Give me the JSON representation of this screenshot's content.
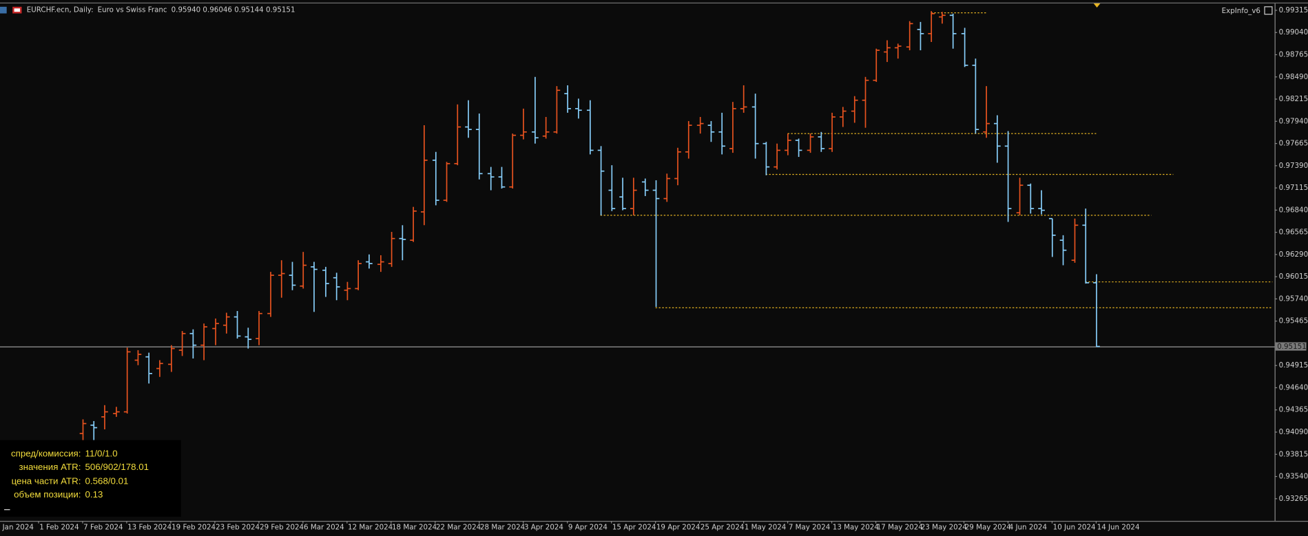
{
  "header": {
    "symbol": "EURCHF.ecn, Daily:",
    "description": "Euro vs Swiss Franc",
    "quote": "0.95940 0.96046 0.95144 0.95151",
    "indicator": "ExpInfo_v6"
  },
  "chart_data": {
    "type": "ohlc",
    "up_color": "#e8531f",
    "down_color": "#87cefa",
    "level_color": "#e6b422",
    "xlim": [
      -7.5,
      108.2
    ],
    "xticks": [
      {
        "value": -8,
        "label": "Jan 2024"
      },
      {
        "value": -4,
        "label": "1 Feb 2024"
      },
      {
        "value": 0,
        "label": "7 Feb 2024"
      },
      {
        "value": 4,
        "label": "13 Feb 2024"
      },
      {
        "value": 8,
        "label": "19 Feb 2024"
      },
      {
        "value": 12,
        "label": "23 Feb 2024"
      },
      {
        "value": 16,
        "label": "29 Feb 2024"
      },
      {
        "value": 20,
        "label": "6 Mar 2024"
      },
      {
        "value": 24,
        "label": "12 Mar 2024"
      },
      {
        "value": 28,
        "label": "18 Mar 2024"
      },
      {
        "value": 32,
        "label": "22 Mar 2024"
      },
      {
        "value": 36,
        "label": "28 Mar 2024"
      },
      {
        "value": 40,
        "label": "3 Apr 2024"
      },
      {
        "value": 44,
        "label": "9 Apr 2024"
      },
      {
        "value": 48,
        "label": "15 Apr 2024"
      },
      {
        "value": 52,
        "label": "19 Apr 2024"
      },
      {
        "value": 56,
        "label": "25 Apr 2024"
      },
      {
        "value": 60,
        "label": "1 May 2024"
      },
      {
        "value": 64,
        "label": "7 May 2024"
      },
      {
        "value": 68,
        "label": "13 May 2024"
      },
      {
        "value": 72,
        "label": "17 May 2024"
      },
      {
        "value": 76,
        "label": "23 May 2024"
      },
      {
        "value": 80,
        "label": "29 May 2024"
      },
      {
        "value": 84,
        "label": "4 Jun 2024"
      },
      {
        "value": 88,
        "label": "10 Jun 2024"
      },
      {
        "value": 92,
        "label": "14 Jun 2024"
      }
    ],
    "ylim": [
      0.9299,
      0.9939
    ],
    "yticks": [
      0.99315,
      {
        "value": 0.9904,
        "label": "0.99040"
      },
      0.98765,
      {
        "value": 0.9849,
        "label": "0.98490"
      },
      0.98215,
      {
        "value": 0.9794,
        "label": "0.97940"
      },
      0.97665,
      {
        "value": 0.9739,
        "label": "0.97390"
      },
      0.97115,
      {
        "value": 0.9684,
        "label": "0.96840"
      },
      0.96565,
      {
        "value": 0.9629,
        "label": "0.96290"
      },
      0.96015,
      {
        "value": 0.9574,
        "label": "0.95740"
      },
      0.95465,
      0.94915,
      {
        "value": 0.9464,
        "label": "0.94640"
      },
      0.94365,
      {
        "value": 0.9409,
        "label": "0.94090"
      },
      0.93815,
      {
        "value": 0.9354,
        "label": "0.93540"
      },
      0.93265
    ],
    "open": [
      0.94073,
      0.94176,
      0.94279,
      0.9432,
      0.94341,
      0.94981,
      0.95022,
      0.94878,
      0.9493,
      0.95105,
      0.95311,
      0.95167,
      0.95373,
      0.95414,
      0.95517,
      0.9527,
      0.95249,
      0.95559,
      0.96033,
      0.96033,
      0.95899,
      0.96137,
      0.96095,
      0.96002,
      0.95848,
      0.95868,
      0.96199,
      0.96168,
      0.96178,
      0.96488,
      0.96467,
      0.96818,
      0.97458,
      0.96962,
      0.97416,
      0.9787,
      0.97839,
      0.97292,
      0.97251,
      0.97127,
      0.97767,
      0.97808,
      0.97757,
      0.97808,
      0.98283,
      0.98097,
      0.98077,
      0.97581,
      0.97086,
      0.97003,
      0.96859,
      0.97189,
      0.97086,
      0.96983,
      0.97231,
      0.97561,
      0.97891,
      0.97891,
      0.97808,
      0.97602,
      0.98097,
      0.98118,
      0.97664,
      0.97375,
      0.97581,
      0.97705,
      0.97581,
      0.97747,
      0.97602,
      0.97994,
      0.98066,
      0.98201,
      0.98448,
      0.98799,
      0.98851,
      0.98861,
      0.99078,
      0.99026,
      0.99233,
      0.99253,
      0.99026,
      0.98634,
      0.97808,
      0.97912,
      0.97633,
      0.96807,
      0.97148,
      0.96859,
      0.96735,
      0.96467,
      0.96219,
      0.96653,
      0.9594
    ],
    "high": [
      0.94248,
      0.94227,
      0.94424,
      0.94403,
      0.95136,
      0.95105,
      0.95074,
      0.94981,
      0.95167,
      0.95342,
      0.95363,
      0.95435,
      0.95497,
      0.95569,
      0.9559,
      0.95383,
      0.9559,
      0.96075,
      0.96219,
      0.96199,
      0.96322,
      0.96199,
      0.96137,
      0.96064,
      0.95951,
      0.96219,
      0.96291,
      0.96281,
      0.9657,
      0.96653,
      0.9688,
      0.97891,
      0.97561,
      0.97437,
      0.98149,
      0.98201,
      0.98036,
      0.97375,
      0.97375,
      0.97788,
      0.98097,
      0.9849,
      0.97994,
      0.98376,
      0.98386,
      0.98221,
      0.98201,
      0.97633,
      0.97396,
      0.97241,
      0.97241,
      0.97231,
      0.9721,
      0.97292,
      0.97612,
      0.97943,
      0.97994,
      0.97943,
      0.98046,
      0.9818,
      0.98386,
      0.98283,
      0.97685,
      0.97664,
      0.97788,
      0.97726,
      0.97788,
      0.97808,
      0.98046,
      0.98118,
      0.98252,
      0.9849,
      0.9884,
      0.98944,
      0.98902,
      0.99181,
      0.99171,
      0.99305,
      0.99295,
      0.99274,
      0.99098,
      0.98717,
      0.98376,
      0.98015,
      0.97819,
      0.97241,
      0.97169,
      0.97086,
      0.96735,
      0.96529,
      0.96735,
      0.96859,
      0.96046
    ],
    "low": [
      0.93949,
      0.9399,
      0.94124,
      0.94279,
      0.9432,
      0.94919,
      0.94692,
      0.94774,
      0.94836,
      0.95033,
      0.95002,
      0.94981,
      0.95167,
      0.95311,
      0.95249,
      0.95125,
      0.95167,
      0.95517,
      0.95755,
      0.95848,
      0.95868,
      0.95579,
      0.95765,
      0.95724,
      0.95724,
      0.95848,
      0.96116,
      0.96075,
      0.96137,
      0.96219,
      0.96446,
      0.96653,
      0.969,
      0.96942,
      0.97396,
      0.97736,
      0.9722,
      0.97086,
      0.97107,
      0.97107,
      0.97716,
      0.97664,
      0.97726,
      0.97788,
      0.98046,
      0.97974,
      0.9753,
      0.96776,
      0.96828,
      0.96838,
      0.96776,
      0.97014,
      0.95641,
      0.96942,
      0.97148,
      0.97478,
      0.97788,
      0.97685,
      0.9753,
      0.9755,
      0.98046,
      0.97478,
      0.97272,
      0.97344,
      0.9752,
      0.97499,
      0.9755,
      0.97561,
      0.97561,
      0.9787,
      0.97922,
      0.9786,
      0.98428,
      0.98675,
      0.98717,
      0.9882,
      0.9882,
      0.98923,
      0.9915,
      0.9884,
      0.98613,
      0.97788,
      0.97736,
      0.97427,
      0.96694,
      0.96776,
      0.96797,
      0.96787,
      0.9626,
      0.96157,
      0.96188,
      0.9593,
      0.95144
    ],
    "close": [
      0.94196,
      0.94145,
      0.94341,
      0.94341,
      0.95084,
      0.95053,
      0.94816,
      0.9494,
      0.95125,
      0.95311,
      0.95167,
      0.95394,
      0.95435,
      0.95517,
      0.9528,
      0.95239,
      0.95559,
      0.96033,
      0.96054,
      0.9591,
      0.96157,
      0.96106,
      0.9593,
      0.95889,
      0.95868,
      0.96178,
      0.96178,
      0.96199,
      0.96488,
      0.96477,
      0.96828,
      0.97458,
      0.96962,
      0.97416,
      0.9787,
      0.97839,
      0.97292,
      0.97251,
      0.97127,
      0.97767,
      0.97808,
      0.97736,
      0.97808,
      0.98324,
      0.98097,
      0.98077,
      0.97581,
      0.97323,
      0.96859,
      0.96859,
      0.97086,
      0.97086,
      0.96983,
      0.97231,
      0.97561,
      0.97891,
      0.97912,
      0.97808,
      0.97633,
      0.98097,
      0.98118,
      0.97664,
      0.97375,
      0.97581,
      0.97705,
      0.97581,
      0.97747,
      0.97602,
      0.97994,
      0.98066,
      0.98201,
      0.98448,
      0.9882,
      0.98851,
      0.98871,
      0.9915,
      0.99026,
      0.99274,
      0.99253,
      0.99026,
      0.98634,
      0.97839,
      0.97912,
      0.97633,
      0.96859,
      0.97148,
      0.96859,
      0.96838,
      0.96529,
      0.96343,
      0.96653,
      0.9594,
      0.95151
    ],
    "levels": [
      {
        "value": 0.99284,
        "from": 77,
        "to": 82
      },
      {
        "value": 0.97788,
        "from": 64,
        "to": 92
      },
      {
        "value": 0.97282,
        "from": 62,
        "to": 99
      },
      {
        "value": 0.96776,
        "from": 47,
        "to": 97
      },
      {
        "value": 0.95951,
        "from": 91,
        "to": 108
      },
      {
        "value": 0.95631,
        "from": 52,
        "to": 108
      }
    ]
  },
  "info_panel": {
    "rows": [
      {
        "label": "спред/комиссия:",
        "value": "11/0/1.0"
      },
      {
        "label": "значения ATR:",
        "value": "506/902/178.01"
      },
      {
        "label": "цена части ATR:",
        "value": "0.568/0.01"
      },
      {
        "label": "объем позиции:",
        "value": "0.13"
      }
    ]
  }
}
